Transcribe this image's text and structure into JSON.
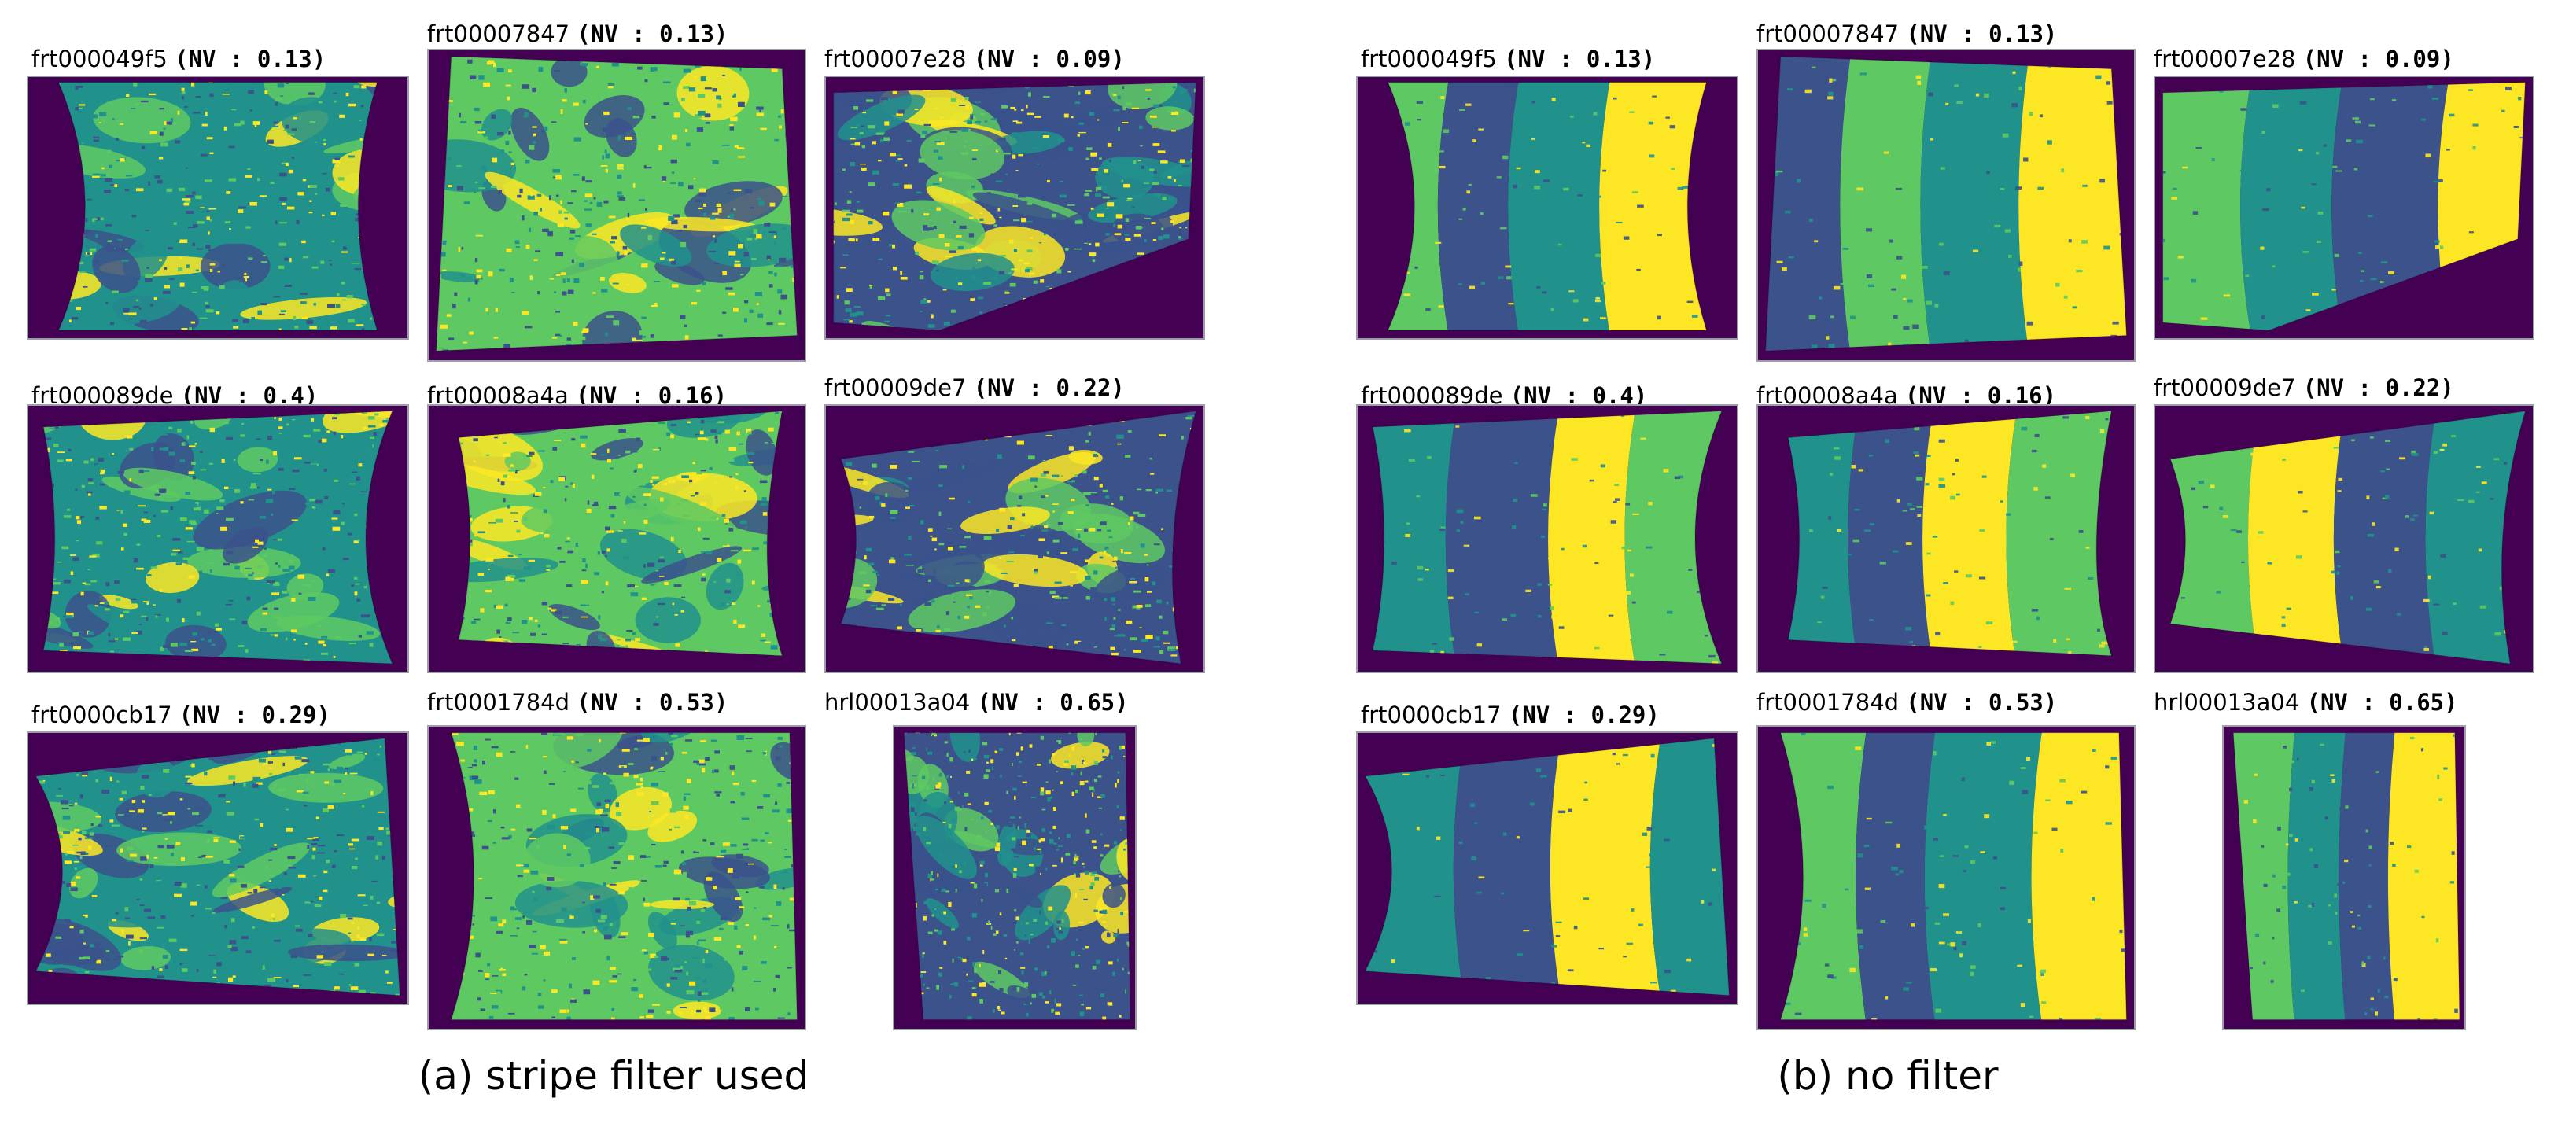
{
  "colors": {
    "background": "#440154",
    "dark_blue": "#3b528b",
    "teal": "#21918c",
    "green": "#5ec962",
    "yellow": "#fde725"
  },
  "groups": [
    {
      "caption": "(a) stripe filter used",
      "panels": [
        {
          "id": "frt000049f5",
          "nv": "(NV : 0.13)"
        },
        {
          "id": "frt00007847",
          "nv": "(NV : 0.13)"
        },
        {
          "id": "frt00007e28",
          "nv": "(NV : 0.09)"
        },
        {
          "id": "frt000089de",
          "nv": "(NV : 0.4)"
        },
        {
          "id": "frt00008a4a",
          "nv": "(NV : 0.16)"
        },
        {
          "id": "frt00009de7",
          "nv": "(NV : 0.22)"
        },
        {
          "id": "frt0000cb17",
          "nv": "(NV : 0.29)"
        },
        {
          "id": "frt0001784d",
          "nv": "(NV : 0.53)"
        },
        {
          "id": "hrl00013a04",
          "nv": "(NV : 0.65)"
        }
      ]
    },
    {
      "caption": "(b) no filter",
      "panels": [
        {
          "id": "frt000049f5",
          "nv": "(NV : 0.13)"
        },
        {
          "id": "frt00007847",
          "nv": "(NV : 0.13)"
        },
        {
          "id": "frt00007e28",
          "nv": "(NV : 0.09)"
        },
        {
          "id": "frt000089de",
          "nv": "(NV : 0.4)"
        },
        {
          "id": "frt00008a4a",
          "nv": "(NV : 0.16)"
        },
        {
          "id": "frt00009de7",
          "nv": "(NV : 0.22)"
        },
        {
          "id": "frt0000cb17",
          "nv": "(NV : 0.29)"
        },
        {
          "id": "frt0001784d",
          "nv": "(NV : 0.53)"
        },
        {
          "id": "hrl00013a04",
          "nv": "(NV : 0.65)"
        }
      ]
    }
  ]
}
